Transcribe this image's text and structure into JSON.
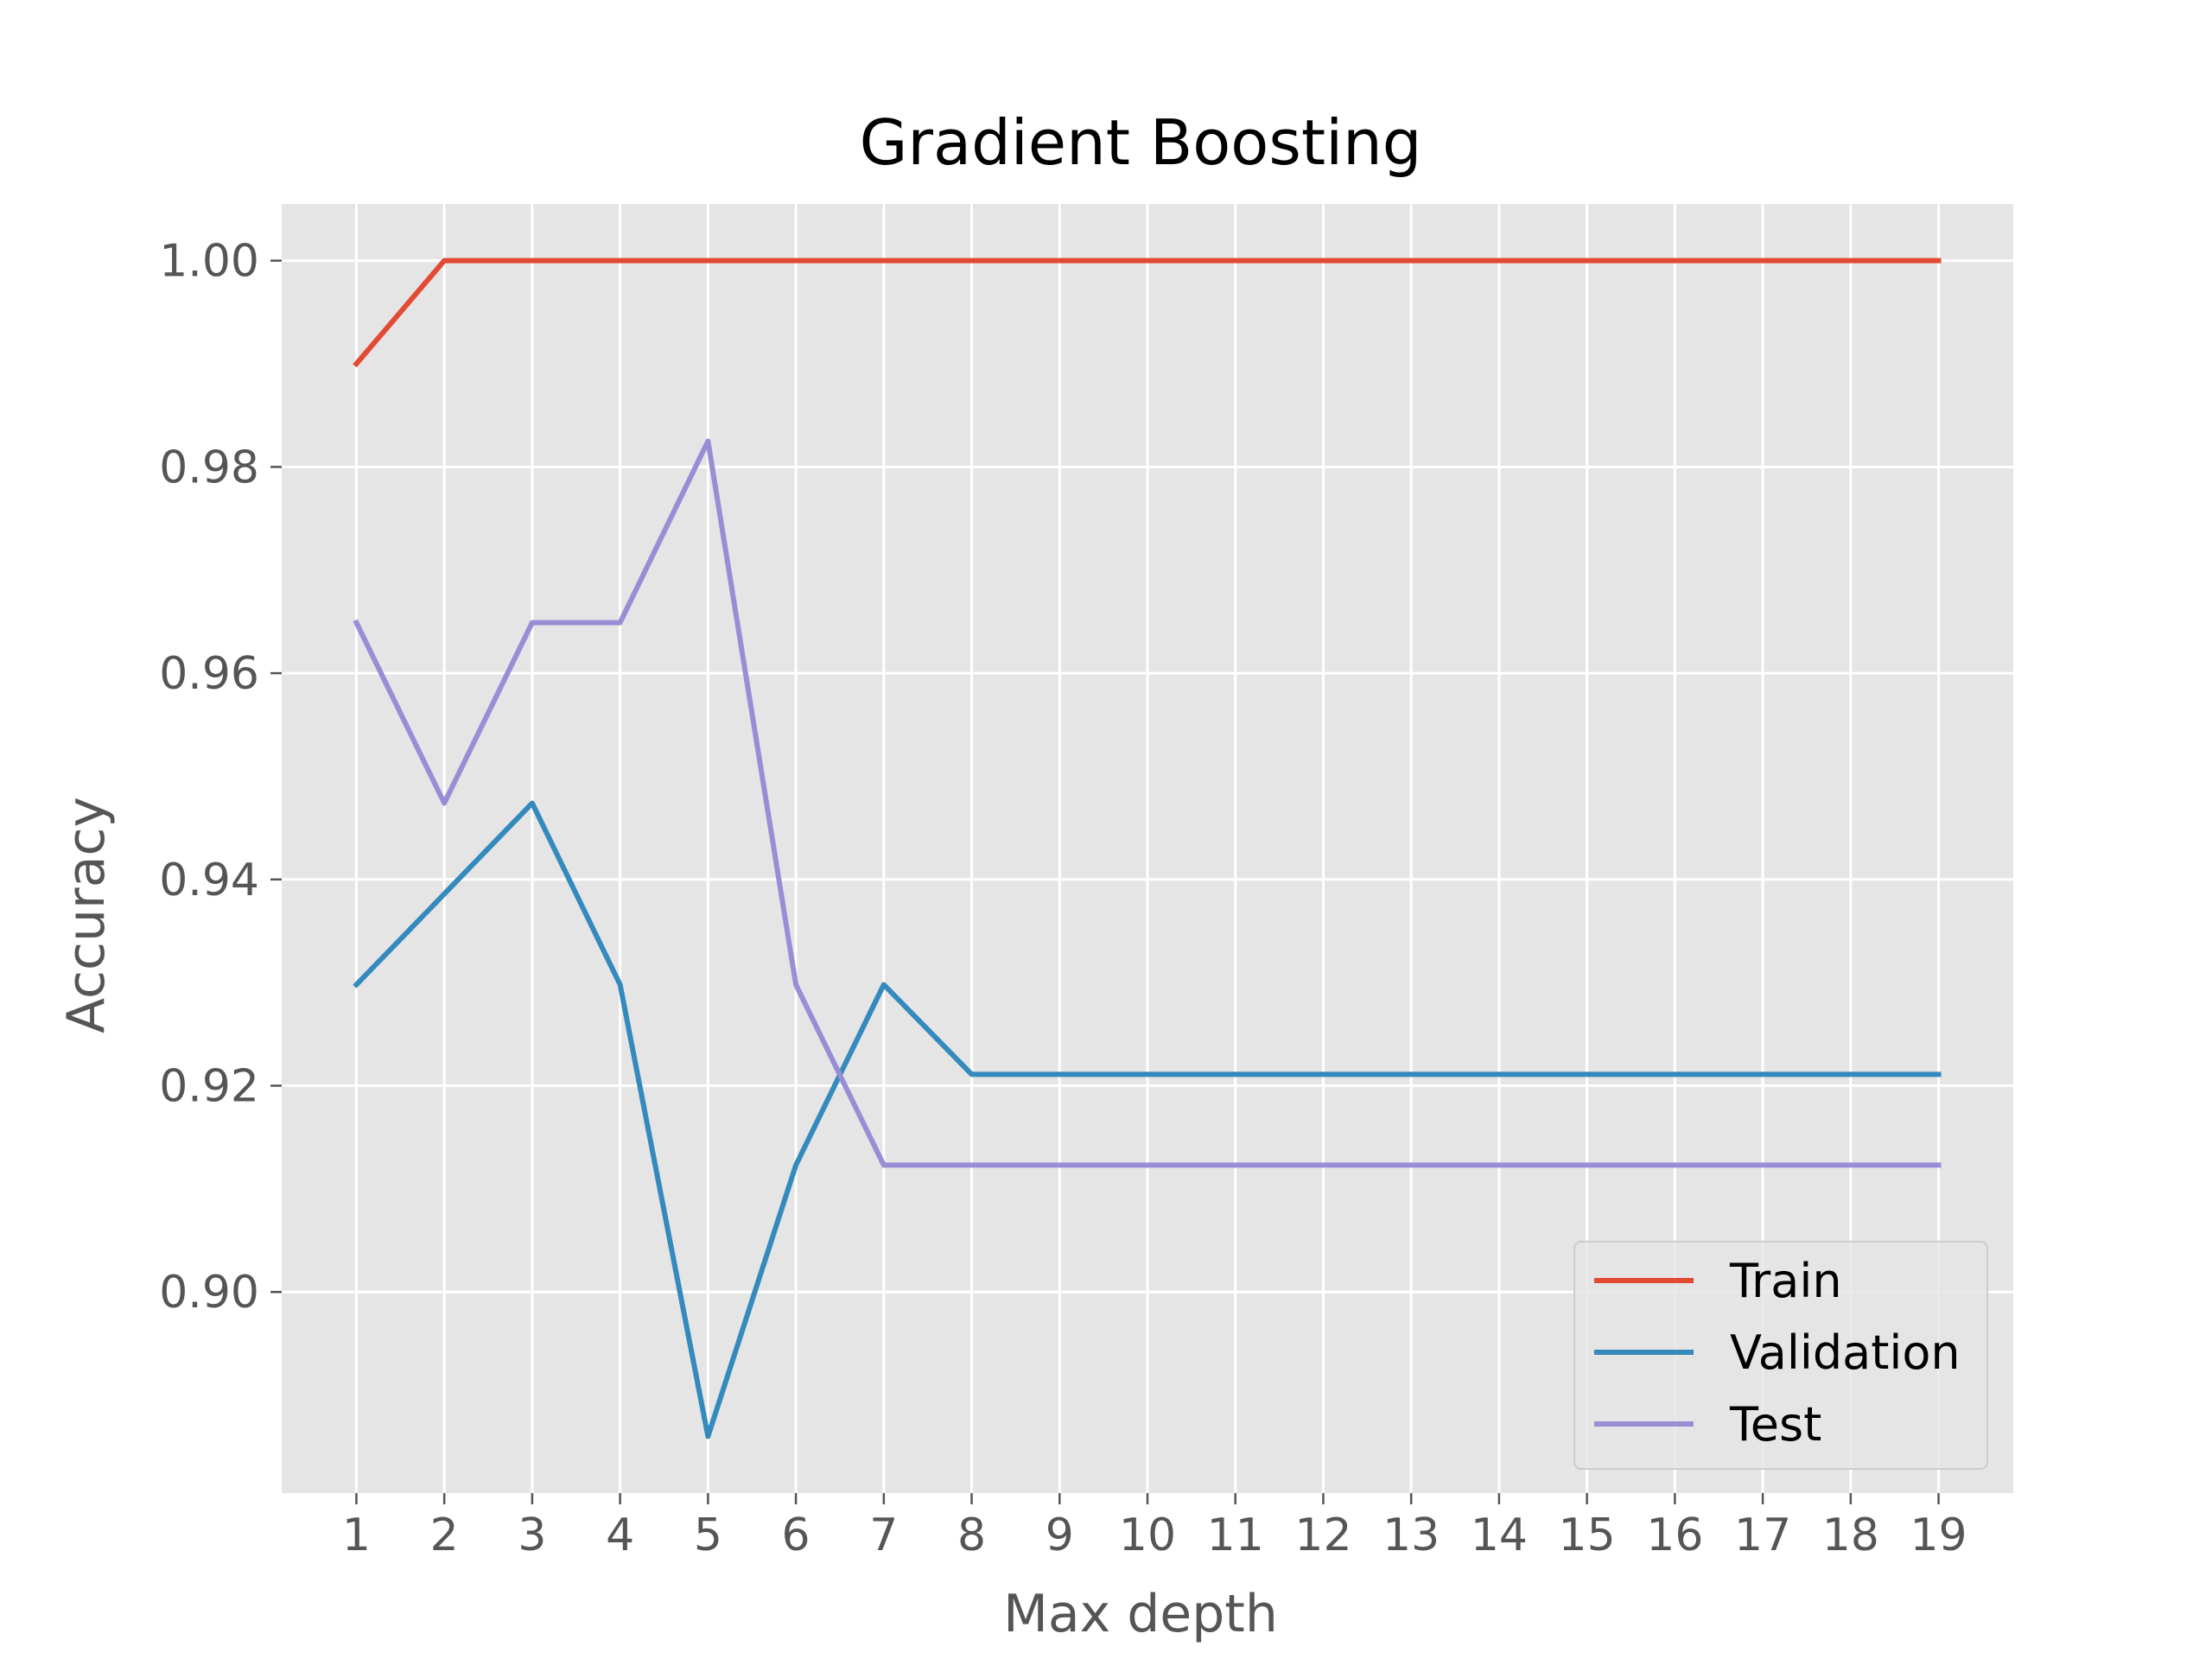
{
  "chart_data": {
    "type": "line",
    "title": "Gradient Boosting",
    "xlabel": "Max depth",
    "ylabel": "Accuracy",
    "x": [
      1,
      2,
      3,
      4,
      5,
      6,
      7,
      8,
      9,
      10,
      11,
      12,
      13,
      14,
      15,
      16,
      17,
      18,
      19
    ],
    "xticks": [
      "1",
      "2",
      "3",
      "4",
      "5",
      "6",
      "7",
      "8",
      "9",
      "10",
      "11",
      "12",
      "13",
      "14",
      "15",
      "16",
      "17",
      "18",
      "19"
    ],
    "yticks": [
      "0.90",
      "0.92",
      "0.94",
      "0.96",
      "0.98",
      "1.00"
    ],
    "ytick_values": [
      0.9,
      0.92,
      0.94,
      0.96,
      0.98,
      1.0
    ],
    "xlim": [
      0.15,
      19.85
    ],
    "ylim": [
      0.8805,
      1.0055
    ],
    "grid": true,
    "legend_position": "lower-right",
    "series": [
      {
        "name": "Train",
        "color": "#E24A33",
        "values": [
          0.99,
          1.0,
          1.0,
          1.0,
          1.0,
          1.0,
          1.0,
          1.0,
          1.0,
          1.0,
          1.0,
          1.0,
          1.0,
          1.0,
          1.0,
          1.0,
          1.0,
          1.0,
          1.0
        ]
      },
      {
        "name": "Validation",
        "color": "#348ABD",
        "values": [
          0.9298,
          0.9386,
          0.9474,
          0.9298,
          0.886,
          0.9123,
          0.9298,
          0.9211,
          0.9211,
          0.9211,
          0.9211,
          0.9211,
          0.9211,
          0.9211,
          0.9211,
          0.9211,
          0.9211,
          0.9211,
          0.9211
        ]
      },
      {
        "name": "Test",
        "color": "#988ED5",
        "values": [
          0.9649,
          0.9474,
          0.9649,
          0.9649,
          0.9825,
          0.9298,
          0.9123,
          0.9123,
          0.9123,
          0.9123,
          0.9123,
          0.9123,
          0.9123,
          0.9123,
          0.9123,
          0.9123,
          0.9123,
          0.9123,
          0.9123
        ]
      }
    ]
  }
}
